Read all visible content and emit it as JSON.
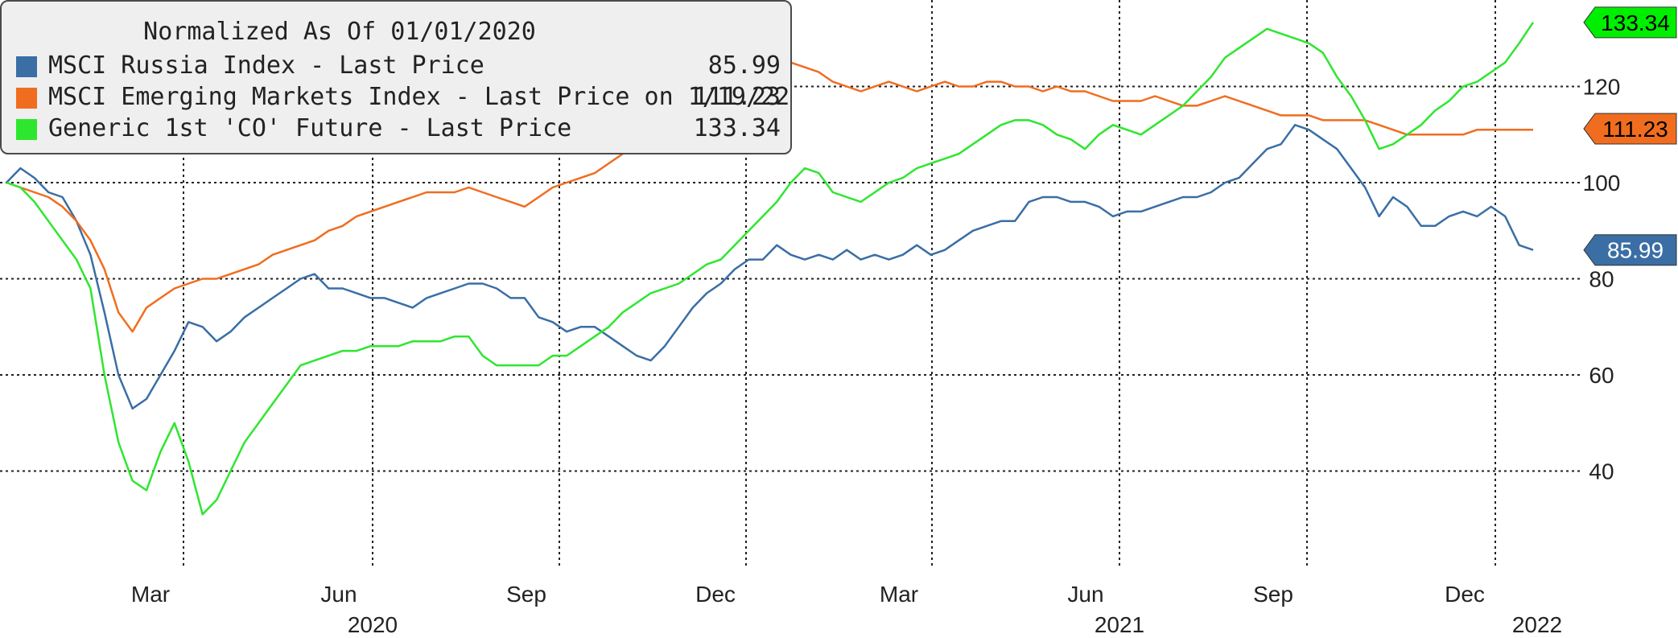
{
  "chart_data": {
    "type": "line",
    "title": "Normalized As Of 01/01/2020",
    "x_ticks": [
      "Mar",
      "Jun",
      "Sep",
      "Dec",
      "Mar",
      "Jun",
      "Sep",
      "Dec"
    ],
    "year_labels": [
      "2020",
      "2021",
      "2022"
    ],
    "ylim": [
      20,
      138
    ],
    "y_ticks": [
      40,
      60,
      80,
      100,
      120
    ],
    "grid": true,
    "legend_position": "top-left",
    "series": [
      {
        "name": "MSCI Russia Index - Last Price",
        "color": "#3a6ea5",
        "last_value": "85.99",
        "values": [
          100,
          103,
          101,
          98,
          97,
          92,
          85,
          73,
          60,
          53,
          55,
          60,
          65,
          71,
          70,
          67,
          69,
          72,
          74,
          76,
          78,
          80,
          81,
          78,
          78,
          77,
          76,
          76,
          75,
          74,
          76,
          77,
          78,
          79,
          79,
          78,
          76,
          76,
          72,
          71,
          69,
          70,
          70,
          68,
          66,
          64,
          63,
          66,
          70,
          74,
          77,
          79,
          82,
          84,
          84,
          87,
          85,
          84,
          85,
          84,
          86,
          84,
          85,
          84,
          85,
          87,
          85,
          86,
          88,
          90,
          91,
          92,
          92,
          96,
          97,
          97,
          96,
          96,
          95,
          93,
          94,
          94,
          95,
          96,
          97,
          97,
          98,
          100,
          101,
          104,
          107,
          108,
          112,
          111,
          109,
          107,
          103,
          99,
          93,
          97,
          95,
          91,
          91,
          93,
          94,
          93,
          95,
          93,
          87,
          86
        ]
      },
      {
        "name": "MSCI Emerging Markets Index - Last Price on 1/19/22",
        "color": "#f06d1f",
        "last_value": "111.23",
        "values": [
          100,
          99,
          98,
          97,
          95,
          92,
          88,
          82,
          73,
          69,
          74,
          76,
          78,
          79,
          80,
          80,
          81,
          82,
          83,
          85,
          86,
          87,
          88,
          90,
          91,
          93,
          94,
          95,
          96,
          97,
          98,
          98,
          98,
          99,
          98,
          97,
          96,
          95,
          97,
          99,
          100,
          101,
          102,
          104,
          106,
          108,
          110,
          112,
          114,
          117,
          120,
          125,
          128,
          128,
          129,
          127,
          125,
          124,
          123,
          121,
          120,
          119,
          120,
          121,
          120,
          119,
          120,
          121,
          120,
          120,
          121,
          121,
          120,
          120,
          119,
          120,
          119,
          119,
          118,
          117,
          117,
          117,
          118,
          117,
          116,
          116,
          117,
          118,
          117,
          116,
          115,
          114,
          114,
          114,
          113,
          113,
          113,
          113,
          112,
          111,
          110,
          110,
          110,
          110,
          110,
          111,
          111,
          111,
          111,
          111
        ]
      },
      {
        "name": "Generic 1st 'CO' Future - Last Price",
        "color": "#2fe62f",
        "last_value": "133.34",
        "values": [
          100,
          99,
          96,
          92,
          88,
          84,
          78,
          60,
          46,
          38,
          36,
          44,
          50,
          42,
          31,
          34,
          40,
          46,
          50,
          54,
          58,
          62,
          63,
          64,
          65,
          65,
          66,
          66,
          66,
          67,
          67,
          67,
          68,
          68,
          64,
          62,
          62,
          62,
          62,
          64,
          64,
          66,
          68,
          70,
          73,
          75,
          77,
          78,
          79,
          81,
          83,
          84,
          87,
          90,
          93,
          96,
          100,
          103,
          102,
          98,
          97,
          96,
          98,
          100,
          101,
          103,
          104,
          105,
          106,
          108,
          110,
          112,
          113,
          113,
          112,
          110,
          109,
          107,
          110,
          112,
          111,
          110,
          112,
          114,
          116,
          119,
          122,
          126,
          128,
          130,
          132,
          131,
          130,
          129,
          127,
          122,
          118,
          113,
          107,
          108,
          110,
          112,
          115,
          117,
          120,
          121,
          123,
          125,
          129,
          133.34
        ]
      }
    ]
  },
  "price_tags": [
    {
      "label": "133.34",
      "value": 133.34,
      "color": "#00ee00",
      "text_color": "#000000"
    },
    {
      "label": "111.23",
      "value": 111.23,
      "color": "#f06d1f",
      "text_color": "#000000"
    },
    {
      "label": "85.99",
      "value": 85.99,
      "color": "#3a6ea5",
      "text_color": "#ffffff"
    }
  ]
}
